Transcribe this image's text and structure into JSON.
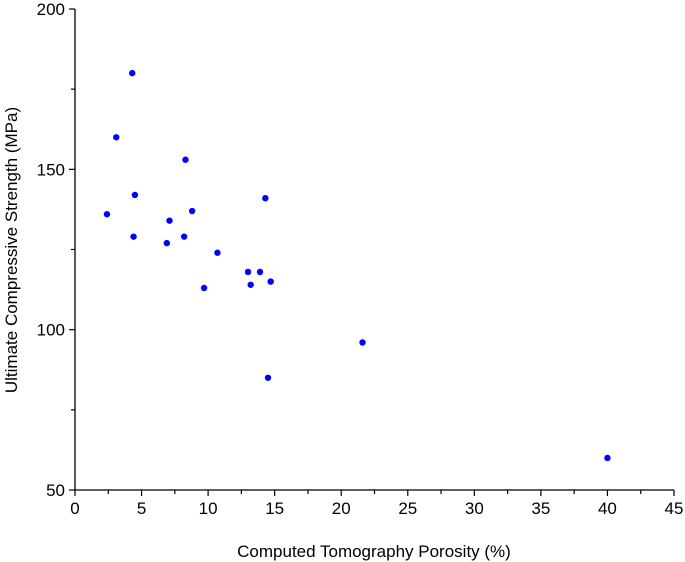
{
  "chart_data": {
    "type": "scatter",
    "title": "",
    "xlabel": "Computed Tomography Porosity (%)",
    "ylabel": "Ultimate Compressive Strength (MPa)",
    "xlim": [
      0,
      45
    ],
    "ylim": [
      50,
      200
    ],
    "xticks": [
      0,
      5,
      10,
      15,
      20,
      25,
      30,
      35,
      40,
      45
    ],
    "yticks": [
      50,
      100,
      150,
      200
    ],
    "grid": false,
    "marker_color": "#0000ff",
    "series": [
      {
        "x": [
          2.4,
          3.1,
          4.3,
          4.5,
          4.4,
          6.9,
          7.1,
          8.2,
          8.3,
          8.8,
          9.7,
          10.7,
          13.0,
          13.2,
          13.9,
          14.3,
          14.5,
          14.7,
          21.6,
          40.0
        ],
        "y": [
          136,
          160,
          180,
          142,
          129,
          127,
          134,
          129,
          153,
          137,
          113,
          124,
          118,
          114,
          118,
          141,
          85,
          115,
          96,
          60
        ]
      }
    ]
  }
}
